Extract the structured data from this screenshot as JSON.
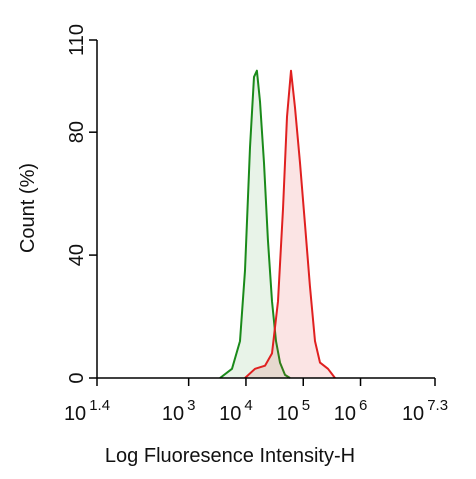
{
  "chart_data": {
    "type": "histogram-line",
    "xlabel": "Log Fluoresence Intensity-H",
    "ylabel": "Count  (%)",
    "xscale": "log",
    "xlim": [
      25.12,
      19953000
    ],
    "xticks": [
      {
        "value": 25.12,
        "label": "10",
        "exponent": "1.4"
      },
      {
        "value": 1000,
        "label": "10",
        "exponent": "3"
      },
      {
        "value": 10000,
        "label": "10",
        "exponent": "4"
      },
      {
        "value": 100000,
        "label": "10",
        "exponent": "5"
      },
      {
        "value": 1000000,
        "label": "10",
        "exponent": "6"
      },
      {
        "value": 19953000,
        "label": "10",
        "exponent": "7.3"
      }
    ],
    "ylim": [
      0,
      110
    ],
    "yticks": [
      0,
      40,
      80,
      110
    ],
    "series": [
      {
        "color": "#1a8a1a",
        "fill": "rgba(26,138,26,0.10)",
        "x": [
          3524,
          5702,
          7870,
          9620,
          11750,
          13800,
          15560,
          17580,
          20620,
          24210,
          28440,
          33400,
          39260,
          47970,
          58630
        ],
        "values": [
          0,
          3,
          12,
          35,
          75,
          98,
          100,
          90,
          70,
          45,
          25,
          12,
          5,
          1,
          0
        ]
      },
      {
        "color": "#e02020",
        "fill": "rgba(224,32,32,0.12)",
        "x": [
          9620,
          14360,
          21480,
          28440,
          36220,
          44260,
          51990,
          61090,
          71780,
          87700,
          107200,
          130900,
          160300,
          195900,
          270100,
          357900
        ],
        "values": [
          0,
          3,
          4,
          8,
          25,
          55,
          85,
          100,
          88,
          70,
          50,
          30,
          12,
          5,
          3,
          0
        ]
      }
    ]
  }
}
